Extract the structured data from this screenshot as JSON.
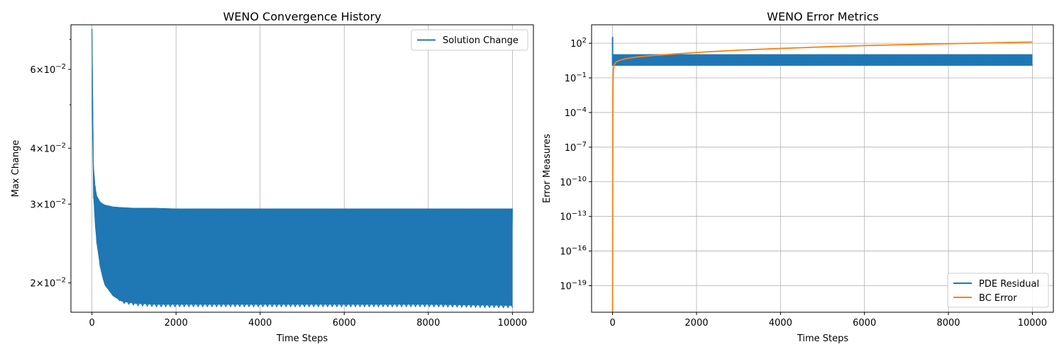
{
  "chart_data": [
    {
      "type": "line",
      "title": "WENO Convergence History",
      "xlabel": "Time Steps",
      "ylabel": "Max Change",
      "xlim": [
        -500,
        10500
      ],
      "ylim": [
        0.0172,
        0.0755
      ],
      "yscale": "log",
      "grid": "x-only",
      "legend_position": "top-right",
      "x_ticks": [
        0,
        2000,
        4000,
        6000,
        8000,
        10000
      ],
      "x_tick_labels": [
        "0",
        "2000",
        "4000",
        "6000",
        "8000",
        "10000"
      ],
      "y_ticks": [
        0.02,
        0.03,
        0.04,
        0.06
      ],
      "y_tick_mantissa": [
        "2",
        "3",
        "4",
        "6"
      ],
      "y_tick_base": "10",
      "y_tick_exp": "−2",
      "series": [
        {
          "name": "Solution Change",
          "color": "#1f77b4",
          "kind": "oscillating-band",
          "x": [
            0,
            20,
            50,
            100,
            200,
            300,
            500,
            700,
            1000,
            1500,
            2000,
            4000,
            6000,
            8000,
            10000
          ],
          "upper": [
            0.074,
            0.04,
            0.0345,
            0.0315,
            0.0303,
            0.0299,
            0.0296,
            0.0295,
            0.0294,
            0.0294,
            0.0293,
            0.0293,
            0.0293,
            0.0293,
            0.0293
          ],
          "lower": [
            0.049,
            0.034,
            0.029,
            0.025,
            0.0215,
            0.0198,
            0.0187,
            0.0182,
            0.018,
            0.0179,
            0.0179,
            0.0179,
            0.0179,
            0.0179,
            0.0178
          ]
        }
      ]
    },
    {
      "type": "line",
      "title": "WENO Error Metrics",
      "xlabel": "Time Steps",
      "ylabel": "Error Measures",
      "xlim": [
        -500,
        10500
      ],
      "ylim_exp": [
        -21.3,
        3.6
      ],
      "yscale": "log",
      "grid": "both",
      "legend_position": "lower-right",
      "x_ticks": [
        0,
        2000,
        4000,
        6000,
        8000,
        10000
      ],
      "x_tick_labels": [
        "0",
        "2000",
        "4000",
        "6000",
        "8000",
        "10000"
      ],
      "y_tick_exps": [
        2,
        -1,
        -4,
        -7,
        -10,
        -13,
        -16,
        -19
      ],
      "y_tick_exp_labels": [
        "2",
        "−1",
        "−4",
        "−7",
        "−10",
        "−13",
        "−16",
        "−19"
      ],
      "y_tick_base": "10",
      "series": [
        {
          "name": "PDE Residual",
          "color": "#1f77b4",
          "kind": "oscillating-band",
          "x_start": 0,
          "x_end": 10000,
          "upper_log10": 1.05,
          "lower_log10": 0.05,
          "spike_log10": 2.55
        },
        {
          "name": "BC Error",
          "color": "#ff7f0e",
          "x": [
            0,
            5,
            10,
            20,
            40,
            80,
            150,
            300,
            600,
            1000,
            2000,
            3000,
            4000,
            5000,
            6000,
            7000,
            8000,
            9000,
            10000
          ],
          "y_log10": [
            -21.3,
            -6.0,
            -1.5,
            -0.3,
            0.15,
            0.35,
            0.5,
            0.65,
            0.82,
            0.95,
            1.2,
            1.4,
            1.55,
            1.68,
            1.8,
            1.88,
            1.96,
            2.03,
            2.1
          ]
        }
      ]
    }
  ]
}
